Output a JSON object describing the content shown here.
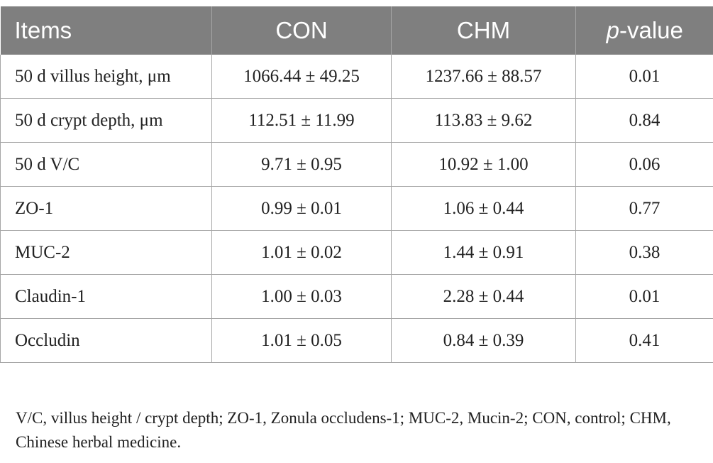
{
  "table": {
    "headers": {
      "items": "Items",
      "con": "CON",
      "chm": "CHM",
      "pvalue_italic": "p",
      "pvalue_rest": "-value"
    },
    "rows": [
      {
        "item": "50 d villus height, μm",
        "con": "1066.44 ± 49.25",
        "chm": "1237.66 ± 88.57",
        "p": "0.01"
      },
      {
        "item": "50 d crypt depth, μm",
        "con": "112.51 ± 11.99",
        "chm": "113.83 ± 9.62",
        "p": "0.84"
      },
      {
        "item": "50 d V/C",
        "con": "9.71 ± 0.95",
        "chm": "10.92 ± 1.00",
        "p": "0.06"
      },
      {
        "item": "ZO-1",
        "con": "0.99 ± 0.01",
        "chm": "1.06 ± 0.44",
        "p": "0.77"
      },
      {
        "item": "MUC-2",
        "con": "1.01 ± 0.02",
        "chm": "1.44 ± 0.91",
        "p": "0.38"
      },
      {
        "item": "Claudin-1",
        "con": "1.00 ± 0.03",
        "chm": "2.28 ± 0.44",
        "p": "0.01"
      },
      {
        "item": "Occludin",
        "con": "1.01 ± 0.05",
        "chm": "0.84 ± 0.39",
        "p": "0.41"
      }
    ]
  },
  "footnote": "V/C, villus height / crypt depth; ZO-1, Zonula occludens-1; MUC-2, Mucin-2; CON, control; CHM, Chinese herbal medicine.",
  "colors": {
    "header_bg": "#7f7f7f",
    "header_text": "#ffffff",
    "border": "#a6a6a6"
  }
}
